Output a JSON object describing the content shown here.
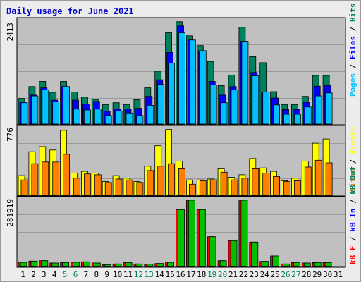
{
  "page": {
    "title": "Daily usage for June 2021"
  },
  "colors": {
    "title": "#0000cc",
    "plot_bg": "#c0c0c0",
    "hits": "#00805c",
    "files": "#0000ff",
    "pages": "#00c0ff",
    "visits": "#ffff00",
    "sites": "#ff8000",
    "kbin": "#ff0000",
    "kbout": "#00c000",
    "day_weekday": "#000000",
    "day_weekend": "#00805c"
  },
  "chart_data": [
    {
      "type": "bar",
      "name": "hits-files-pages",
      "title": "Daily usage for June 2021",
      "max_label": "2413",
      "ymax": 2413,
      "legend": [
        {
          "label": "Pages",
          "color": "#00c0ff"
        },
        {
          "label": "Files",
          "color": "#0000ff"
        },
        {
          "label": "Hits",
          "color": "#00805c"
        }
      ],
      "categories": [
        "1",
        "2",
        "3",
        "4",
        "5",
        "6",
        "7",
        "8",
        "9",
        "10",
        "11",
        "12",
        "13",
        "14",
        "15",
        "16",
        "17",
        "18",
        "19",
        "20",
        "21",
        "22",
        "23",
        "24",
        "25",
        "26",
        "27",
        "28",
        "29",
        "30",
        "31"
      ],
      "series": [
        {
          "name": "Hits",
          "values": [
            600,
            880,
            1000,
            745,
            1000,
            750,
            630,
            580,
            460,
            500,
            460,
            570,
            850,
            1240,
            2140,
            2400,
            2070,
            1840,
            1470,
            900,
            1150,
            2270,
            1580,
            1440,
            760,
            460,
            460,
            650,
            1140,
            1140,
            0
          ]
        },
        {
          "name": "Files",
          "values": [
            520,
            680,
            850,
            560,
            880,
            560,
            470,
            530,
            300,
            350,
            350,
            370,
            650,
            1040,
            1680,
            2300,
            1970,
            1720,
            1000,
            680,
            880,
            1940,
            1210,
            750,
            610,
            340,
            340,
            510,
            890,
            900,
            0
          ]
        },
        {
          "name": "Pages",
          "values": [
            500,
            660,
            800,
            520,
            880,
            350,
            330,
            350,
            200,
            310,
            260,
            200,
            440,
            930,
            1430,
            2140,
            1970,
            1720,
            920,
            500,
            800,
            1940,
            1130,
            750,
            450,
            230,
            230,
            400,
            660,
            730,
            0
          ]
        }
      ]
    },
    {
      "type": "bar",
      "name": "visits-sites",
      "max_label": "776",
      "ymax": 776,
      "legend": [
        {
          "label": "Sites",
          "color": "#ff8000"
        },
        {
          "label": "Visits",
          "color": "#ffff00"
        }
      ],
      "categories": [
        "1",
        "2",
        "3",
        "4",
        "5",
        "6",
        "7",
        "8",
        "9",
        "10",
        "11",
        "12",
        "13",
        "14",
        "15",
        "16",
        "17",
        "18",
        "19",
        "20",
        "21",
        "22",
        "23",
        "24",
        "25",
        "26",
        "27",
        "28",
        "29",
        "30",
        "31"
      ],
      "series": [
        {
          "name": "Visits",
          "values": [
            230,
            510,
            570,
            530,
            760,
            260,
            280,
            260,
            160,
            230,
            200,
            160,
            340,
            580,
            770,
            400,
            180,
            180,
            190,
            310,
            210,
            240,
            430,
            320,
            280,
            170,
            200,
            400,
            610,
            660,
            0
          ]
        },
        {
          "name": "Sites",
          "values": [
            180,
            370,
            390,
            390,
            480,
            200,
            250,
            240,
            150,
            190,
            180,
            150,
            290,
            340,
            370,
            310,
            130,
            170,
            180,
            270,
            180,
            200,
            310,
            260,
            220,
            160,
            170,
            330,
            410,
            380,
            0
          ]
        }
      ]
    },
    {
      "type": "bar",
      "name": "kbf-kbin-kbout",
      "max_label": "281919",
      "ymax": 281919,
      "legend": [
        {
          "label": "kB F",
          "color": "#ff0000"
        },
        {
          "label": "kB In",
          "color": "#0000ff"
        },
        {
          "label": "kB Out",
          "color": "#00805c"
        }
      ],
      "categories": [
        "1",
        "2",
        "3",
        "4",
        "5",
        "6",
        "7",
        "8",
        "9",
        "10",
        "11",
        "12",
        "13",
        "14",
        "15",
        "16",
        "17",
        "18",
        "19",
        "20",
        "21",
        "22",
        "23",
        "24",
        "25",
        "26",
        "27",
        "28",
        "29",
        "30",
        "31"
      ],
      "series": [
        {
          "name": "kB F",
          "values": [
            18000,
            23000,
            25000,
            15000,
            17000,
            18000,
            20000,
            15000,
            8000,
            11000,
            17000,
            11000,
            10000,
            13000,
            18000,
            242000,
            281919,
            242000,
            127000,
            25000,
            110000,
            281919,
            104000,
            22000,
            45000,
            11000,
            17000,
            15000,
            17000,
            17000,
            0
          ]
        },
        {
          "name": "kB Out",
          "values": [
            18000,
            23000,
            25000,
            15000,
            17000,
            18000,
            20000,
            15000,
            8000,
            11000,
            17000,
            11000,
            10000,
            13000,
            18000,
            242000,
            281919,
            242000,
            127000,
            25000,
            110000,
            281919,
            104000,
            22000,
            45000,
            11000,
            17000,
            15000,
            17000,
            17000,
            0
          ]
        }
      ]
    }
  ],
  "days": {
    "labels": [
      "1",
      "2",
      "3",
      "4",
      "5",
      "6",
      "7",
      "8",
      "9",
      "10",
      "11",
      "12",
      "13",
      "14",
      "15",
      "16",
      "17",
      "18",
      "19",
      "20",
      "21",
      "22",
      "23",
      "24",
      "25",
      "26",
      "27",
      "28",
      "29",
      "30",
      "31"
    ],
    "weekend": [
      5,
      6,
      12,
      13,
      19,
      20,
      26,
      27
    ]
  }
}
